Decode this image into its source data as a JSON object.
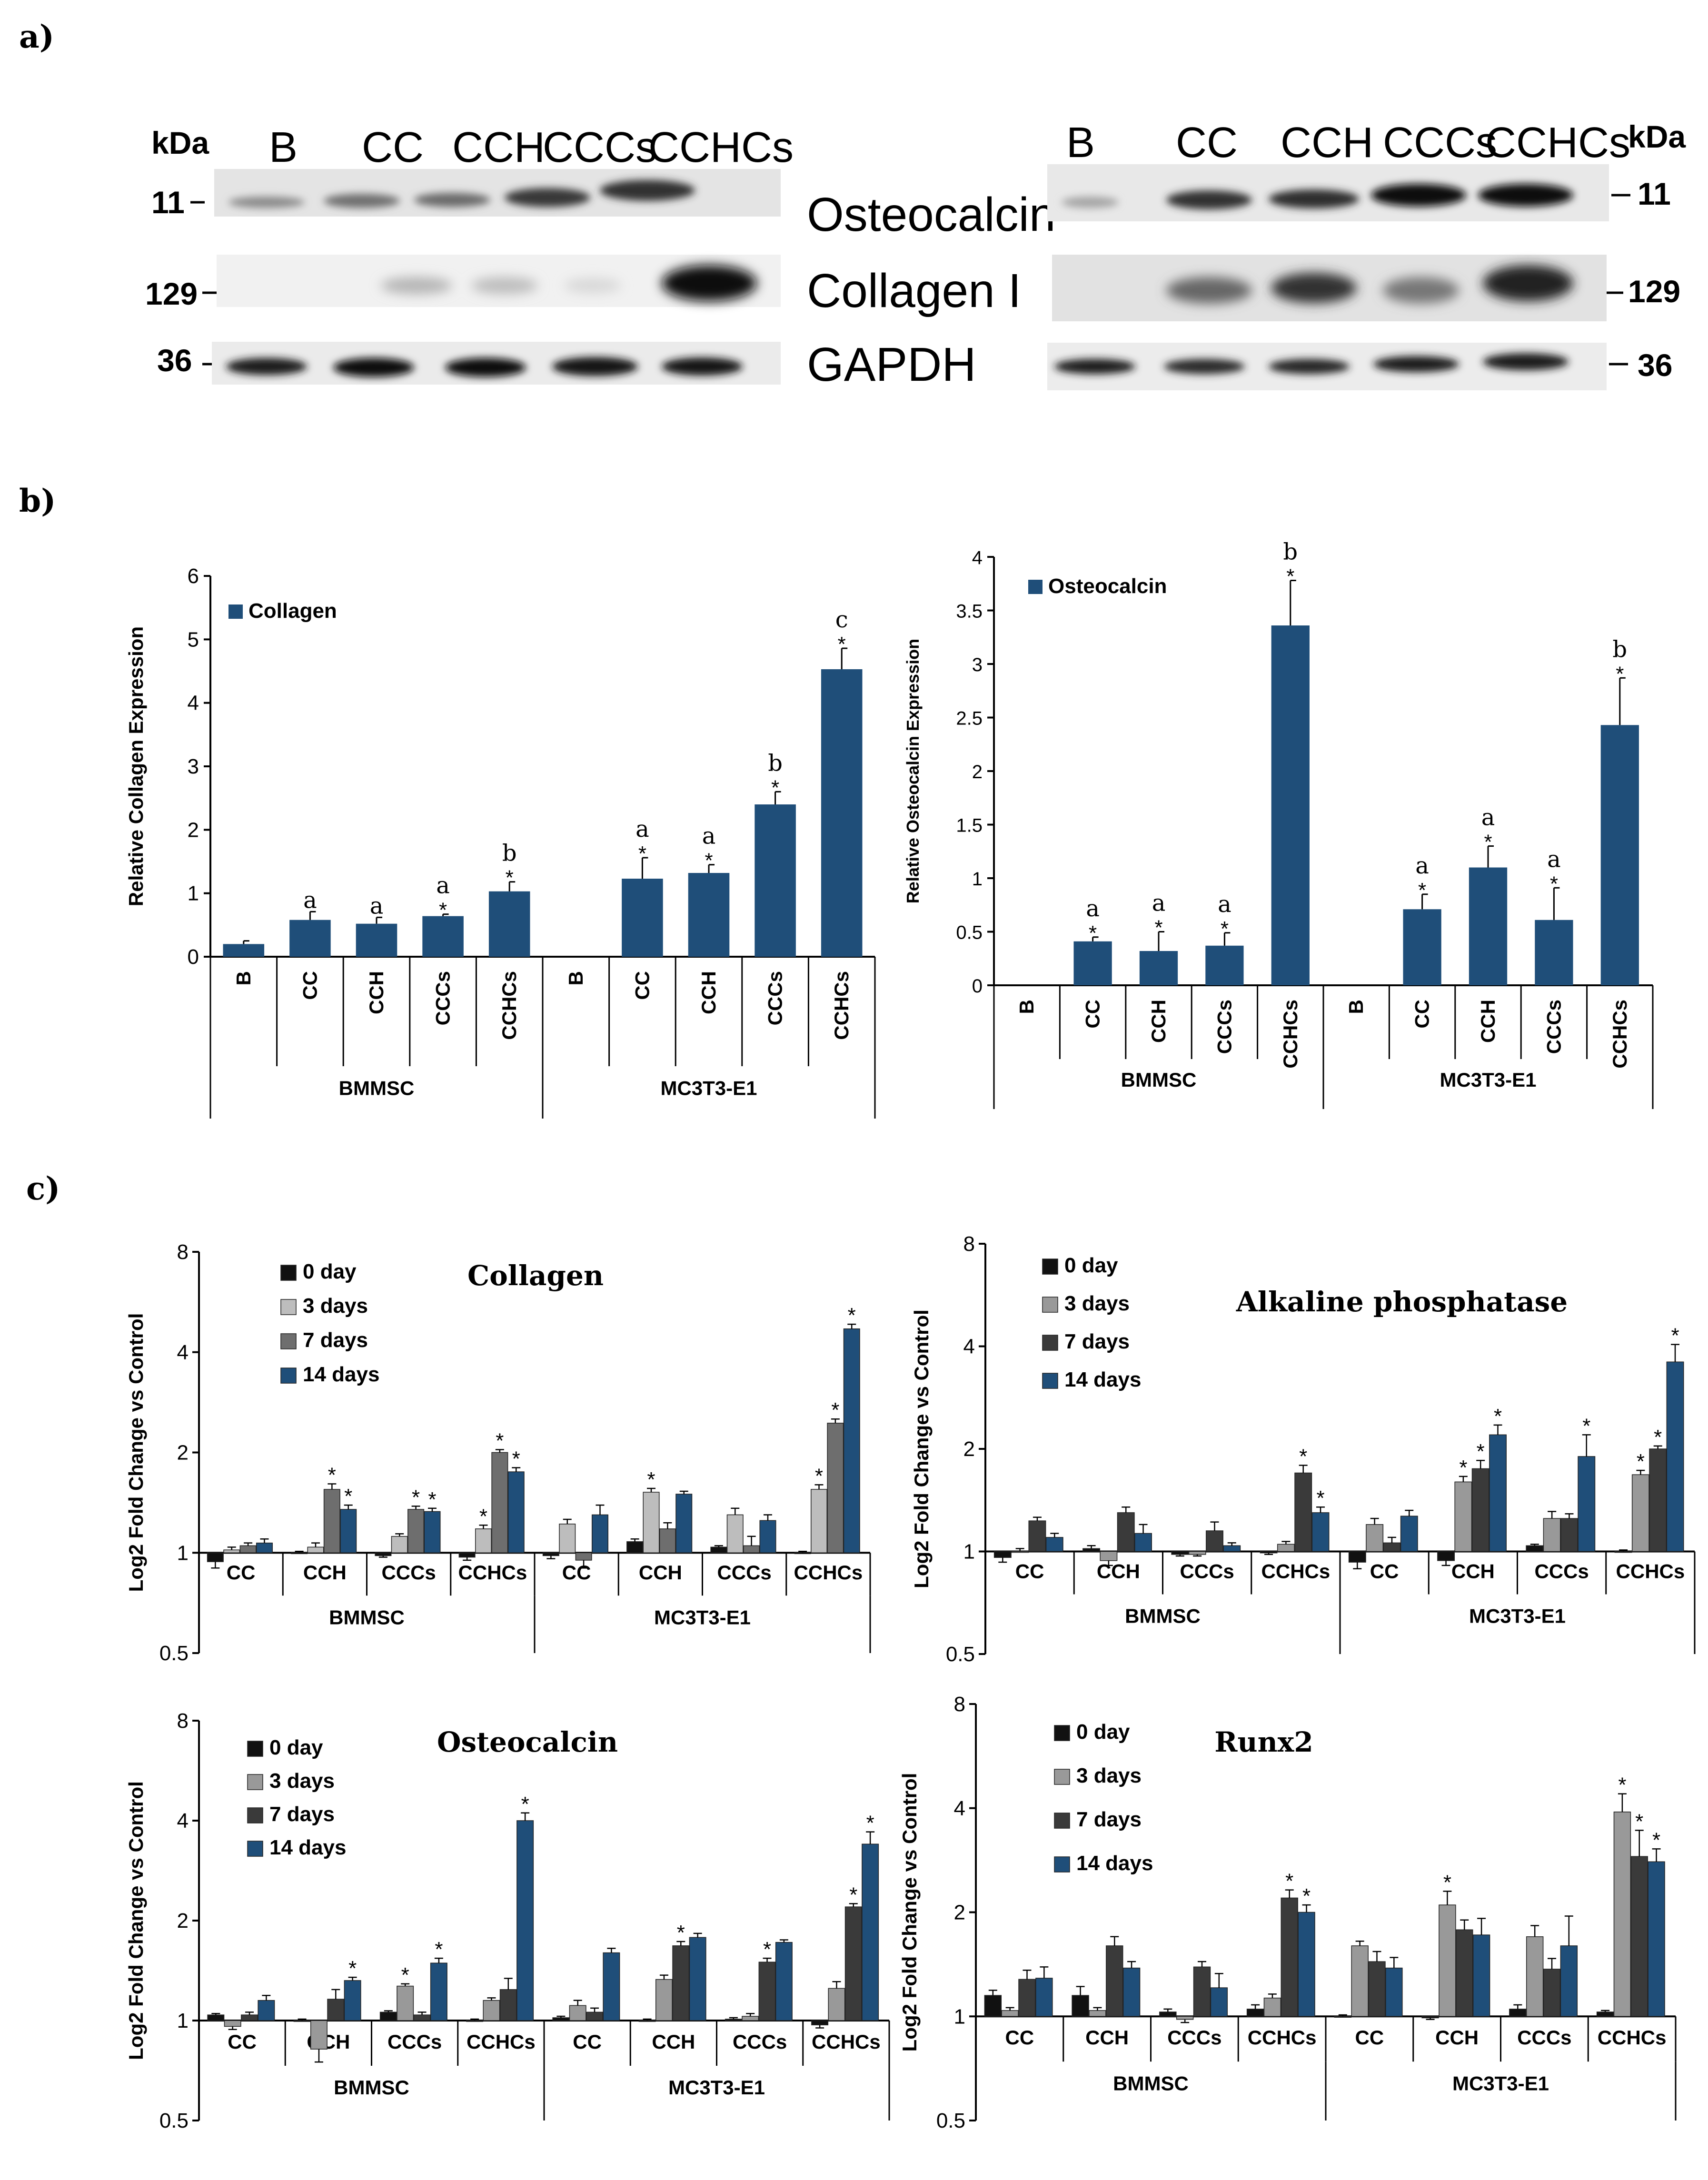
{
  "panel_labels": {
    "a": "a)",
    "b": "b)",
    "c": "c)"
  },
  "blots": {
    "left": {
      "kda_label": "kDa",
      "lanes": [
        "B",
        "CC",
        "CCH",
        "CCCs",
        "CCHCs"
      ],
      "markers": [
        "11",
        "129",
        "36"
      ]
    },
    "right": {
      "kda_label": "kDa",
      "lanes": [
        "B",
        "CC",
        "CCH",
        "CCCs",
        "CCHCs"
      ],
      "markers": [
        "11",
        "129",
        "36"
      ]
    },
    "proteins": [
      "Osteocalcin",
      "Collagen I",
      "GAPDH"
    ]
  },
  "chart_data": [
    {
      "id": "b-collagen",
      "type": "bar",
      "title": "",
      "legend": [
        "Collagen"
      ],
      "ylabel": "Relative Collagen Expression",
      "ylim": [
        0,
        6
      ],
      "yticks": [
        "0",
        "1",
        "2",
        "3",
        "4",
        "5",
        "6"
      ],
      "groups": [
        "BMMSC",
        "MC3T3-E1"
      ],
      "categories": [
        "B",
        "CC",
        "CCH",
        "CCCs",
        "CCHCs",
        "B",
        "CC",
        "CCH",
        "CCCs",
        "CCHCs"
      ],
      "values": [
        0.2,
        0.58,
        0.52,
        0.64,
        1.03,
        0,
        1.23,
        1.32,
        2.4,
        4.53
      ],
      "errors": [
        0.05,
        0.13,
        0.1,
        0.03,
        0.15,
        0,
        0.33,
        0.13,
        0.2,
        0.33
      ],
      "stars": [
        "",
        "",
        "",
        "*",
        "*",
        "",
        "*",
        "*",
        "*",
        "*"
      ],
      "letters": [
        "",
        "a",
        "a",
        "a",
        "b",
        "",
        "a",
        "a",
        "b",
        "c"
      ],
      "color": "#1f4e79"
    },
    {
      "id": "b-osteocalcin",
      "type": "bar",
      "title": "",
      "legend": [
        "Osteocalcin"
      ],
      "ylabel": "Relative Osteocalcin Expression",
      "ylim": [
        0,
        4
      ],
      "yticks": [
        "0",
        "0.5",
        "1",
        "1.5",
        "2",
        "2.5",
        "3",
        "3.5",
        "4"
      ],
      "groups": [
        "BMMSC",
        "MC3T3-E1"
      ],
      "categories": [
        "B",
        "CC",
        "CCH",
        "CCCs",
        "CCHCs",
        "B",
        "CC",
        "CCH",
        "CCCs",
        "CCHCs"
      ],
      "values": [
        0,
        0.41,
        0.32,
        0.37,
        3.36,
        0,
        0.71,
        1.1,
        0.61,
        2.43
      ],
      "errors": [
        0,
        0.04,
        0.18,
        0.12,
        0.42,
        0,
        0.14,
        0.2,
        0.3,
        0.44
      ],
      "stars": [
        "",
        "*",
        "*",
        "*",
        "*",
        "",
        "*",
        "*",
        "*",
        "*"
      ],
      "letters": [
        "",
        "a",
        "a",
        "a",
        "b",
        "",
        "a",
        "a",
        "a",
        "b"
      ],
      "color": "#1f4e79"
    },
    {
      "id": "c-collagen",
      "type": "bar",
      "title": "Collagen",
      "ylabel": "Log2 Fold Change vs Control",
      "yscale": "log2",
      "ylim": [
        0.5,
        8
      ],
      "yticks": [
        "0.5",
        "1",
        "2",
        "4",
        "8"
      ],
      "groups": [
        "BMMSC",
        "MC3T3-E1"
      ],
      "categories": [
        "CC",
        "CCH",
        "CCCs",
        "CCHCs",
        "CC",
        "CCH",
        "CCCs",
        "CCHCs"
      ],
      "series": [
        {
          "name": "0 day",
          "color": "#111111",
          "values": [
            0.94,
            1.0,
            0.98,
            0.97,
            0.98,
            1.08,
            1.04,
            1.0
          ],
          "errors": [
            0.04,
            0.01,
            0.01,
            0.02,
            0.02,
            0.02,
            0.01,
            0.01
          ]
        },
        {
          "name": "3 days",
          "color": "#bdbdbd",
          "values": [
            1.02,
            1.04,
            1.12,
            1.18,
            1.22,
            1.52,
            1.3,
            1.55
          ],
          "errors": [
            0.02,
            0.03,
            0.02,
            0.03,
            0.04,
            0.04,
            0.06,
            0.05
          ]
        },
        {
          "name": "7 days",
          "color": "#6e6e6e",
          "values": [
            1.05,
            1.55,
            1.35,
            2.0,
            0.95,
            1.18,
            1.05,
            2.45
          ],
          "errors": [
            0.02,
            0.06,
            0.03,
            0.04,
            0.05,
            0.05,
            0.07,
            0.07
          ]
        },
        {
          "name": "14 days",
          "color": "#1f4e79",
          "values": [
            1.07,
            1.35,
            1.33,
            1.75,
            1.3,
            1.5,
            1.25,
            4.7
          ],
          "errors": [
            0.03,
            0.04,
            0.03,
            0.05,
            0.09,
            0.03,
            0.05,
            0.15
          ]
        }
      ],
      "stars": [
        [
          "",
          "",
          "",
          "",
          "",
          "",
          "",
          ""
        ],
        [
          "",
          "",
          "",
          "*",
          "",
          "*",
          "",
          "*"
        ],
        [
          "",
          "*",
          "*",
          "*",
          "",
          "",
          "",
          "*"
        ],
        [
          "",
          "*",
          "*",
          "*",
          "",
          "",
          "",
          "*"
        ]
      ]
    },
    {
      "id": "c-alp",
      "type": "bar",
      "title": "Alkaline  phosphatase",
      "ylabel": "Log2 Fold Change vs Control",
      "yscale": "log2",
      "ylim": [
        0.5,
        8
      ],
      "yticks": [
        "0.5",
        "1",
        "2",
        "4",
        "8"
      ],
      "groups": [
        "BMMSC",
        "MC3T3-E1"
      ],
      "categories": [
        "CC",
        "CCH",
        "CCCs",
        "CCHCs",
        "CC",
        "CCH",
        "CCCs",
        "CCHCs"
      ],
      "series": [
        {
          "name": "0 day",
          "color": "#111111",
          "values": [
            0.96,
            1.02,
            0.98,
            0.99,
            0.93,
            0.94,
            1.04,
            1.0
          ],
          "errors": [
            0.03,
            0.02,
            0.01,
            0.01,
            0.04,
            0.03,
            0.01,
            0.01
          ]
        },
        {
          "name": "3 days",
          "color": "#999999",
          "values": [
            1.0,
            0.94,
            0.98,
            1.05,
            1.2,
            1.6,
            1.25,
            1.68
          ],
          "errors": [
            0.02,
            0.03,
            0.01,
            0.02,
            0.05,
            0.06,
            0.06,
            0.05
          ]
        },
        {
          "name": "7 days",
          "color": "#3a3a3a",
          "values": [
            1.23,
            1.3,
            1.15,
            1.7,
            1.06,
            1.75,
            1.25,
            2.0
          ],
          "errors": [
            0.03,
            0.05,
            0.07,
            0.09,
            0.04,
            0.1,
            0.04,
            0.04
          ]
        },
        {
          "name": "14 days",
          "color": "#1f4e79",
          "values": [
            1.1,
            1.13,
            1.04,
            1.3,
            1.27,
            2.2,
            1.9,
            3.6
          ],
          "errors": [
            0.03,
            0.07,
            0.02,
            0.05,
            0.05,
            0.15,
            0.3,
            0.45
          ]
        }
      ],
      "stars": [
        [
          "",
          "",
          "",
          "",
          "",
          "",
          "",
          ""
        ],
        [
          "",
          "",
          "",
          "",
          "",
          "*",
          "",
          "*"
        ],
        [
          "",
          "",
          "",
          "*",
          "",
          "*",
          "",
          "*"
        ],
        [
          "",
          "",
          "",
          "*",
          "",
          "*",
          "*",
          "*"
        ]
      ]
    },
    {
      "id": "c-osteocalcin",
      "type": "bar",
      "title": "Osteocalcin",
      "ylabel": "Log2 Fold Change vs Control",
      "yscale": "log2",
      "ylim": [
        0.5,
        8
      ],
      "yticks": [
        "0.5",
        "1",
        "2",
        "4",
        "8"
      ],
      "groups": [
        "BMMSC",
        "MC3T3-E1"
      ],
      "categories": [
        "CC",
        "CCH",
        "CCCs",
        "CCHCs",
        "CC",
        "CCH",
        "CCCs",
        "CCHCs"
      ],
      "series": [
        {
          "name": "0 day",
          "color": "#111111",
          "values": [
            1.04,
            1.0,
            1.06,
            1.0,
            1.02,
            1.0,
            1.01,
            0.97
          ],
          "errors": [
            0.01,
            0.01,
            0.01,
            0.01,
            0.01,
            0.01,
            0.01,
            0.02
          ]
        },
        {
          "name": "3 days",
          "color": "#999999",
          "values": [
            0.96,
            0.82,
            1.27,
            1.15,
            1.11,
            1.33,
            1.03,
            1.25
          ],
          "errors": [
            0.02,
            0.07,
            0.02,
            0.02,
            0.04,
            0.04,
            0.02,
            0.06
          ]
        },
        {
          "name": "7 days",
          "color": "#3a3a3a",
          "values": [
            1.04,
            1.16,
            1.04,
            1.24,
            1.06,
            1.68,
            1.5,
            2.2
          ],
          "errors": [
            0.02,
            0.08,
            0.02,
            0.1,
            0.03,
            0.05,
            0.04,
            0.05
          ]
        },
        {
          "name": "14 days",
          "color": "#1f4e79",
          "values": [
            1.15,
            1.32,
            1.49,
            4.0,
            1.6,
            1.78,
            1.72,
            3.4
          ],
          "errors": [
            0.04,
            0.03,
            0.05,
            0.22,
            0.05,
            0.05,
            0.03,
            0.3
          ]
        }
      ],
      "stars": [
        [
          "",
          "",
          "",
          "",
          "",
          "",
          "",
          ""
        ],
        [
          "",
          "",
          "*",
          "",
          "",
          "",
          "",
          ""
        ],
        [
          "",
          "",
          "",
          "",
          "",
          "*",
          "*",
          "*"
        ],
        [
          "",
          "*",
          "*",
          "*",
          "",
          "",
          "",
          "*"
        ]
      ]
    },
    {
      "id": "c-runx2",
      "type": "bar",
      "title": "Runx2",
      "ylabel": "Log2 Fold Change vs Control",
      "yscale": "log2",
      "ylim": [
        0.5,
        8
      ],
      "yticks": [
        "0.5",
        "1",
        "2",
        "4",
        "8"
      ],
      "groups": [
        "BMMSC",
        "MC3T3-E1"
      ],
      "categories": [
        "CC",
        "CCH",
        "CCCs",
        "CCHCs",
        "CC",
        "CCH",
        "CCCs",
        "CCHCs"
      ],
      "series": [
        {
          "name": "0 day",
          "color": "#111111",
          "values": [
            1.15,
            1.15,
            1.03,
            1.05,
            1.0,
            0.99,
            1.05,
            1.03
          ],
          "errors": [
            0.04,
            0.07,
            0.02,
            0.03,
            0.01,
            0.01,
            0.03,
            0.01
          ]
        },
        {
          "name": "3 days",
          "color": "#999999",
          "values": [
            1.04,
            1.04,
            0.98,
            1.13,
            1.6,
            2.1,
            1.7,
            3.9
          ],
          "errors": [
            0.02,
            0.02,
            0.02,
            0.03,
            0.05,
            0.2,
            0.13,
            0.5
          ]
        },
        {
          "name": "7 days",
          "color": "#3a3a3a",
          "values": [
            1.28,
            1.6,
            1.39,
            2.2,
            1.44,
            1.78,
            1.37,
            2.9
          ],
          "errors": [
            0.08,
            0.1,
            0.05,
            0.12,
            0.1,
            0.12,
            0.1,
            0.55
          ]
        },
        {
          "name": "14 days",
          "color": "#1f4e79",
          "values": [
            1.29,
            1.38,
            1.21,
            2.0,
            1.38,
            1.72,
            1.6,
            2.8
          ],
          "errors": [
            0.1,
            0.06,
            0.12,
            0.1,
            0.1,
            0.2,
            0.35,
            0.25
          ]
        }
      ],
      "stars": [
        [
          "",
          "",
          "",
          "",
          "",
          "",
          "",
          ""
        ],
        [
          "",
          "",
          "",
          "",
          "",
          "*",
          "",
          "*"
        ],
        [
          "",
          "",
          "",
          "*",
          "",
          "",
          "",
          "*"
        ],
        [
          "",
          "",
          "",
          "*",
          "",
          "",
          "",
          "*"
        ]
      ]
    }
  ]
}
